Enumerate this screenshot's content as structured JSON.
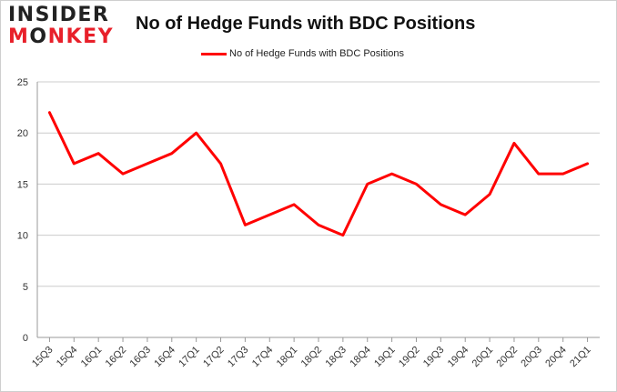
{
  "logo": {
    "line1": "INSIDER",
    "line2a": "M",
    "line2b": "O",
    "line2c": "NKEY"
  },
  "chart_data": {
    "type": "line",
    "title": "No of Hedge Funds with BDC Positions",
    "xlabel": "",
    "ylabel": "",
    "categories": [
      "15Q3",
      "15Q4",
      "16Q1",
      "16Q2",
      "16Q3",
      "16Q4",
      "17Q1",
      "17Q2",
      "17Q3",
      "17Q4",
      "18Q1",
      "18Q2",
      "18Q3",
      "18Q4",
      "19Q1",
      "19Q2",
      "19Q3",
      "19Q4",
      "20Q1",
      "20Q2",
      "20Q3",
      "20Q4",
      "21Q1"
    ],
    "series": [
      {
        "name": "No of Hedge Funds with BDC Positions",
        "color": "#ff0000",
        "values": [
          22,
          17,
          18,
          16,
          17,
          18,
          20,
          17,
          11,
          12,
          13,
          11,
          10,
          15,
          16,
          15,
          13,
          12,
          14,
          19,
          16,
          16,
          17
        ]
      }
    ],
    "ylim": [
      0,
      25
    ],
    "yticks": [
      0,
      5,
      10,
      15,
      20,
      25
    ],
    "grid": true,
    "legend": "top-center"
  }
}
